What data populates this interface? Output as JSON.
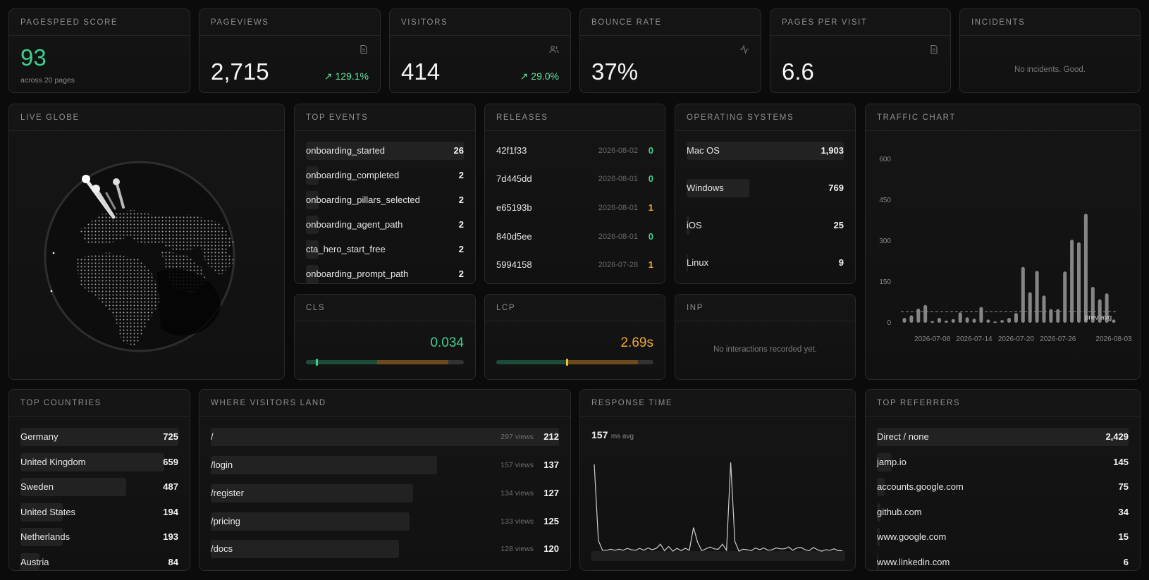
{
  "kpis": {
    "pagespeed": {
      "title": "PAGESPEED SCORE",
      "value": "93",
      "sub": "across 20 pages"
    },
    "pageviews": {
      "title": "PAGEVIEWS",
      "value": "2,715",
      "delta": "129.1%"
    },
    "visitors": {
      "title": "VISITORS",
      "value": "414",
      "delta": "29.0%"
    },
    "bounce": {
      "title": "BOUNCE RATE",
      "value": "37%"
    },
    "ppv": {
      "title": "PAGES PER VISIT",
      "value": "6.6"
    },
    "incidents": {
      "title": "INCIDENTS",
      "empty": "No incidents. Good."
    }
  },
  "globe": {
    "title": "LIVE GLOBE"
  },
  "top_events": {
    "title": "TOP EVENTS",
    "rows": [
      {
        "label": "onboarding_started",
        "value": "26"
      },
      {
        "label": "onboarding_completed",
        "value": "2"
      },
      {
        "label": "onboarding_pillars_selected",
        "value": "2"
      },
      {
        "label": "onboarding_agent_path",
        "value": "2"
      },
      {
        "label": "cta_hero_start_free",
        "value": "2"
      },
      {
        "label": "onboarding_prompt_path",
        "value": "2"
      }
    ]
  },
  "releases": {
    "title": "RELEASES",
    "rows": [
      {
        "hash": "42f1f33",
        "date": "2026-08-02",
        "count": "0"
      },
      {
        "hash": "7d445dd",
        "date": "2026-08-01",
        "count": "0"
      },
      {
        "hash": "e65193b",
        "date": "2026-08-01",
        "count": "1"
      },
      {
        "hash": "840d5ee",
        "date": "2026-08-01",
        "count": "0"
      },
      {
        "hash": "5994158",
        "date": "2026-07-28",
        "count": "1"
      }
    ]
  },
  "os": {
    "title": "OPERATING SYSTEMS",
    "rows": [
      {
        "label": "Mac OS",
        "value": "1,903"
      },
      {
        "label": "Windows",
        "value": "769"
      },
      {
        "label": "iOS",
        "value": "25"
      },
      {
        "label": "Linux",
        "value": "9"
      }
    ]
  },
  "vitals": {
    "cls": {
      "title": "CLS",
      "value": "0.034",
      "position": 0.07
    },
    "lcp": {
      "title": "LCP",
      "value": "2.69s",
      "position": 0.45
    },
    "inp": {
      "title": "INP",
      "empty": "No interactions recorded yet."
    }
  },
  "traffic": {
    "title": "TRAFFIC CHART",
    "prev_avg_label": "prev avg"
  },
  "chart_data": {
    "type": "bar",
    "x": [
      "2026-07-04",
      "2026-07-05",
      "2026-07-06",
      "2026-07-07",
      "2026-07-08",
      "2026-07-09",
      "2026-07-10",
      "2026-07-11",
      "2026-07-12",
      "2026-07-13",
      "2026-07-14",
      "2026-07-15",
      "2026-07-16",
      "2026-07-17",
      "2026-07-18",
      "2026-07-19",
      "2026-07-20",
      "2026-07-21",
      "2026-07-22",
      "2026-07-23",
      "2026-07-24",
      "2026-07-25",
      "2026-07-26",
      "2026-07-27",
      "2026-07-28",
      "2026-07-29",
      "2026-07-30",
      "2026-07-31",
      "2026-08-01",
      "2026-08-02",
      "2026-08-03"
    ],
    "values": [
      18,
      27,
      52,
      65,
      6,
      18,
      8,
      14,
      38,
      20,
      15,
      58,
      12,
      5,
      10,
      18,
      36,
      205,
      112,
      190,
      100,
      50,
      50,
      188,
      305,
      295,
      400,
      132,
      86,
      108,
      12
    ],
    "prev_avg": 40,
    "ylim": [
      0,
      600
    ],
    "yticks": [
      0,
      150,
      300,
      450,
      600
    ],
    "xtick_labels": [
      "2026-07-08",
      "2026-07-14",
      "2026-07-20",
      "2026-07-26",
      "2026-08-03"
    ],
    "title": "TRAFFIC CHART",
    "xlabel": "",
    "ylabel": ""
  },
  "countries": {
    "title": "TOP COUNTRIES",
    "rows": [
      {
        "label": "Germany",
        "value": "725",
        "share": 1.0
      },
      {
        "label": "United Kingdom",
        "value": "659",
        "share": 0.91
      },
      {
        "label": "Sweden",
        "value": "487",
        "share": 0.67
      },
      {
        "label": "United States",
        "value": "194",
        "share": 0.27
      },
      {
        "label": "Netherlands",
        "value": "193",
        "share": 0.27
      },
      {
        "label": "Austria",
        "value": "84",
        "share": 0.12
      }
    ]
  },
  "landing": {
    "title": "WHERE VISITORS LAND",
    "rows": [
      {
        "label": "/",
        "views": "297 views",
        "value": "212",
        "share": 1.0
      },
      {
        "label": "/login",
        "views": "157 views",
        "value": "137",
        "share": 0.65
      },
      {
        "label": "/register",
        "views": "134 views",
        "value": "127",
        "share": 0.6
      },
      {
        "label": "/pricing",
        "views": "133 views",
        "value": "125",
        "share": 0.59
      },
      {
        "label": "/docs",
        "views": "128 views",
        "value": "120",
        "share": 0.57
      }
    ]
  },
  "response": {
    "title": "RESPONSE TIME",
    "avg": "157",
    "unit": "ms avg",
    "series": [
      980,
      160,
      55,
      55,
      65,
      55,
      65,
      55,
      75,
      60,
      55,
      75,
      55,
      80,
      60,
      75,
      120,
      50,
      95,
      45,
      75,
      50,
      75,
      55,
      300,
      140,
      50,
      70,
      90,
      70,
      65,
      120,
      55,
      1000,
      150,
      45,
      65,
      60,
      50,
      80,
      60,
      80,
      55,
      60,
      80,
      70,
      70,
      90,
      55,
      80,
      85,
      60,
      50,
      85,
      60,
      45,
      60,
      55,
      70,
      50,
      50
    ],
    "ylim": [
      0,
      1100
    ]
  },
  "referrers": {
    "title": "TOP REFERRERS",
    "rows": [
      {
        "label": "Direct / none",
        "value": "2,429",
        "share": 1.0
      },
      {
        "label": "jamp.io",
        "value": "145",
        "share": 0.06
      },
      {
        "label": "accounts.google.com",
        "value": "75",
        "share": 0.03
      },
      {
        "label": "github.com",
        "value": "34",
        "share": 0.015
      },
      {
        "label": "www.google.com",
        "value": "15",
        "share": 0.01
      },
      {
        "label": "www.linkedin.com",
        "value": "6",
        "share": 0.005
      }
    ]
  },
  "colors": {
    "accent_green": "#3ecf8e",
    "delta_green": "#5ee5a0",
    "accent_amber": "#f0a83a",
    "bar": "#222222",
    "chart_bar": "#9a9a9a"
  }
}
